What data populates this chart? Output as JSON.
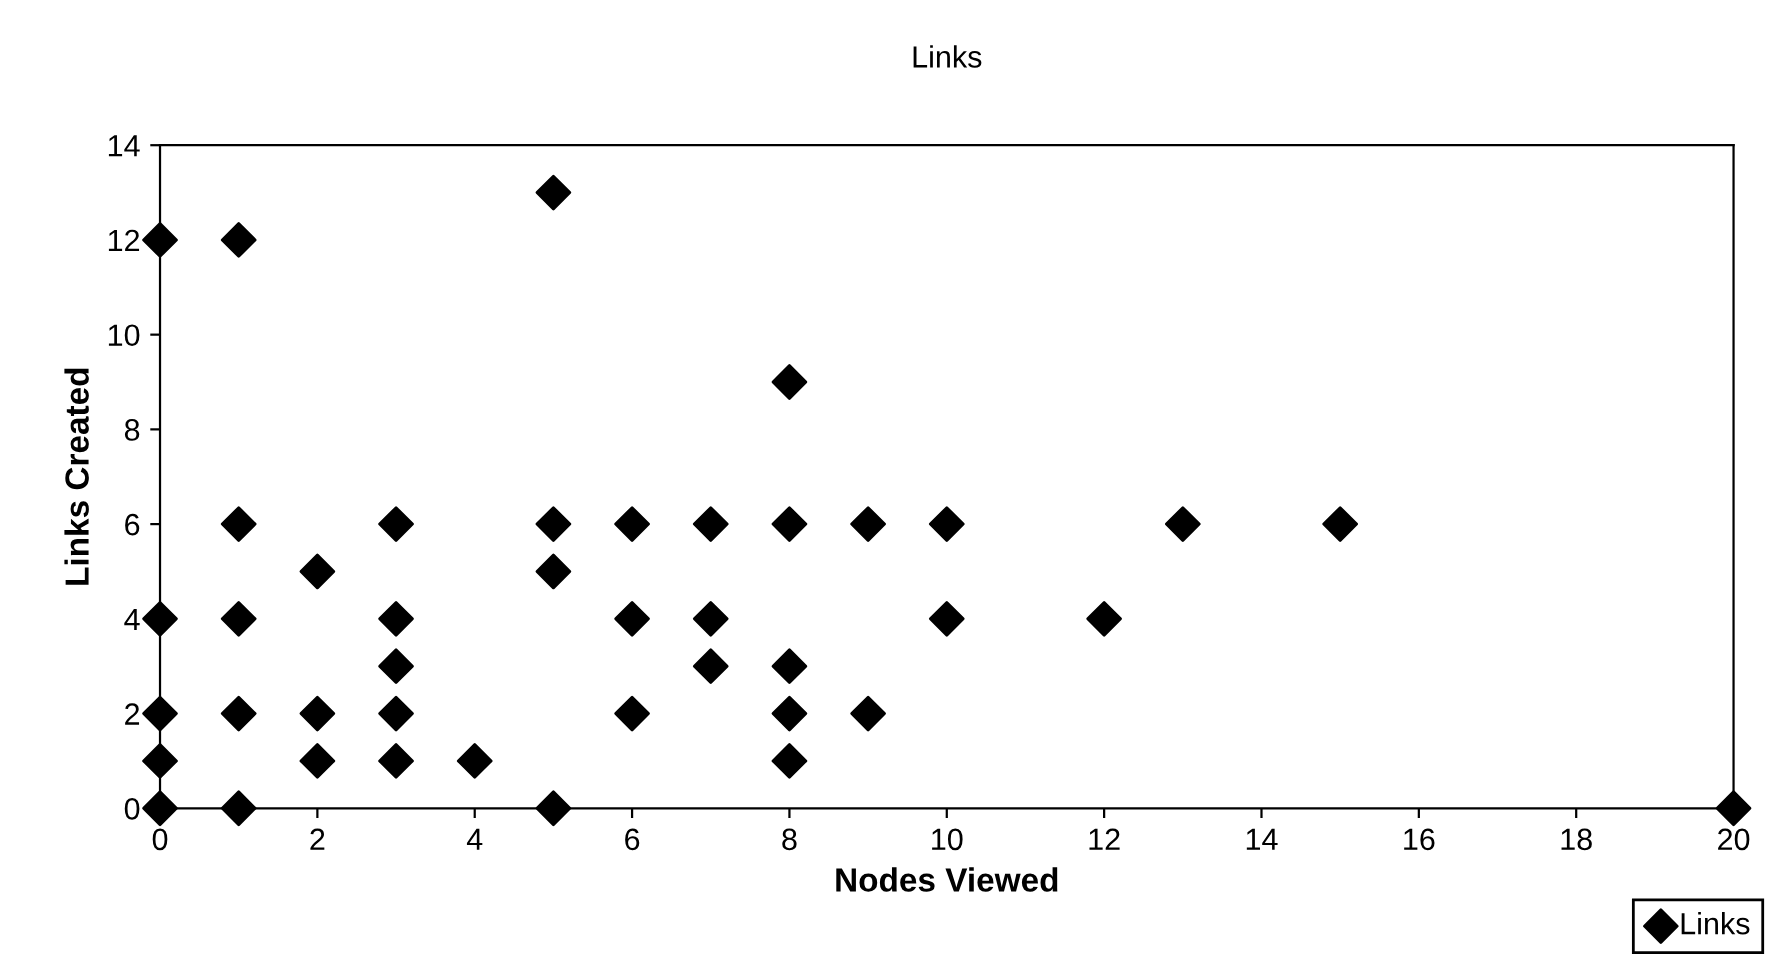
{
  "chart_data": {
    "type": "scatter",
    "title": "Links",
    "xlabel": "Nodes Viewed",
    "ylabel": "Links Created",
    "x": [
      0,
      0,
      0,
      0,
      0,
      1,
      1,
      1,
      1,
      1,
      2,
      2,
      2,
      3,
      3,
      3,
      3,
      3,
      4,
      5,
      5,
      5,
      5,
      6,
      6,
      6,
      7,
      7,
      7,
      8,
      8,
      8,
      8,
      8,
      9,
      9,
      10,
      10,
      12,
      13,
      15,
      20
    ],
    "series": [
      {
        "name": "Links",
        "color": "#000000",
        "values": [
          12,
          4,
          2,
          1,
          0,
          12,
          6,
          4,
          2,
          0,
          5,
          2,
          1,
          6,
          4,
          3,
          2,
          1,
          1,
          13,
          6,
          5,
          0,
          6,
          4,
          2,
          6,
          4,
          3,
          9,
          6,
          3,
          2,
          1,
          6,
          2,
          6,
          4,
          4,
          6,
          6,
          0
        ]
      }
    ],
    "xlim": [
      0,
      20
    ],
    "xticks": [
      0,
      2,
      4,
      6,
      8,
      10,
      12,
      14,
      16,
      18,
      20
    ],
    "ylim": [
      0,
      14
    ],
    "yticks": [
      0,
      2,
      4,
      6,
      8,
      10,
      12,
      14
    ],
    "marker": "diamond",
    "grid": false,
    "legend": "bottom right"
  }
}
